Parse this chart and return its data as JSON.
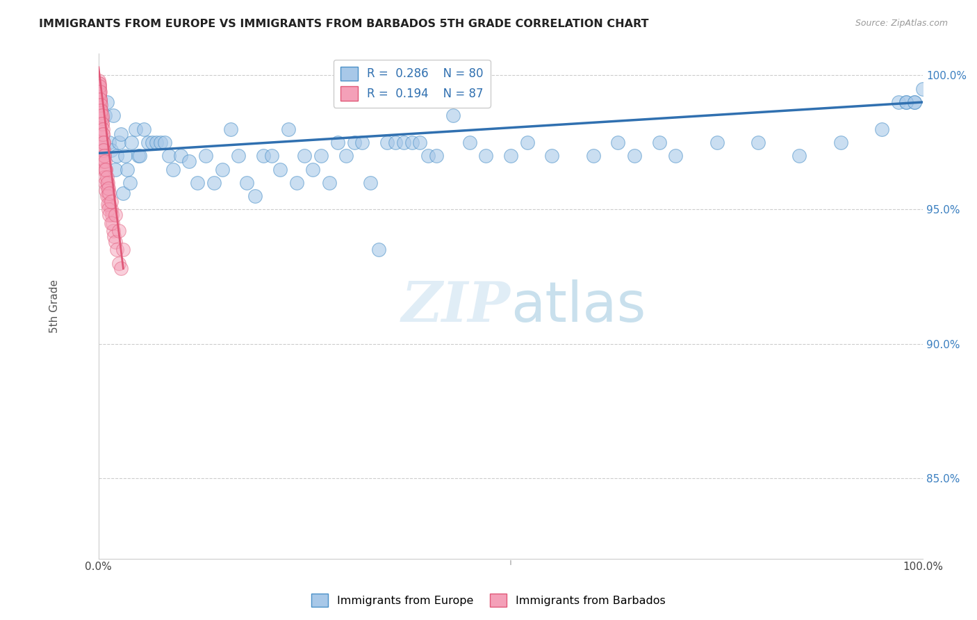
{
  "title": "IMMIGRANTS FROM EUROPE VS IMMIGRANTS FROM BARBADOS 5TH GRADE CORRELATION CHART",
  "source": "Source: ZipAtlas.com",
  "ylabel": "5th Grade",
  "xlim": [
    0.0,
    1.0
  ],
  "ylim": [
    0.82,
    1.008
  ],
  "yticks": [
    0.85,
    0.9,
    0.95,
    1.0
  ],
  "ytick_labels": [
    "85.0%",
    "90.0%",
    "95.0%",
    "100.0%"
  ],
  "xtick_labels": [
    "0.0%",
    "",
    "",
    "",
    "",
    "100.0%"
  ],
  "r_europe": 0.286,
  "n_europe": 80,
  "r_barbados": 0.194,
  "n_barbados": 87,
  "blue_color": "#a8c8e8",
  "blue_edge_color": "#4a90c8",
  "blue_line_color": "#3070b0",
  "pink_color": "#f4a0b8",
  "pink_edge_color": "#e05878",
  "pink_line_color": "#e05878",
  "legend_label_color": "#3070b0",
  "watermark_color": "#d0e8f5",
  "europe_x": [
    0.005,
    0.008,
    0.01,
    0.013,
    0.015,
    0.018,
    0.02,
    0.022,
    0.025,
    0.027,
    0.03,
    0.032,
    0.035,
    0.038,
    0.04,
    0.045,
    0.048,
    0.05,
    0.055,
    0.06,
    0.065,
    0.07,
    0.075,
    0.08,
    0.085,
    0.09,
    0.1,
    0.11,
    0.12,
    0.13,
    0.14,
    0.15,
    0.16,
    0.17,
    0.18,
    0.19,
    0.2,
    0.21,
    0.22,
    0.23,
    0.24,
    0.25,
    0.26,
    0.27,
    0.28,
    0.29,
    0.3,
    0.31,
    0.32,
    0.33,
    0.34,
    0.35,
    0.36,
    0.37,
    0.38,
    0.39,
    0.4,
    0.41,
    0.43,
    0.45,
    0.47,
    0.5,
    0.52,
    0.55,
    0.6,
    0.63,
    0.65,
    0.68,
    0.7,
    0.75,
    0.8,
    0.85,
    0.9,
    0.95,
    0.97,
    0.98,
    0.99,
    1.0,
    0.98,
    0.99
  ],
  "europe_y": [
    0.975,
    0.985,
    0.99,
    0.975,
    0.972,
    0.985,
    0.965,
    0.97,
    0.975,
    0.978,
    0.956,
    0.97,
    0.965,
    0.96,
    0.975,
    0.98,
    0.97,
    0.97,
    0.98,
    0.975,
    0.975,
    0.975,
    0.975,
    0.975,
    0.97,
    0.965,
    0.97,
    0.968,
    0.96,
    0.97,
    0.96,
    0.965,
    0.98,
    0.97,
    0.96,
    0.955,
    0.97,
    0.97,
    0.965,
    0.98,
    0.96,
    0.97,
    0.965,
    0.97,
    0.96,
    0.975,
    0.97,
    0.975,
    0.975,
    0.96,
    0.935,
    0.975,
    0.975,
    0.975,
    0.975,
    0.975,
    0.97,
    0.97,
    0.985,
    0.975,
    0.97,
    0.97,
    0.975,
    0.97,
    0.97,
    0.975,
    0.97,
    0.975,
    0.97,
    0.975,
    0.975,
    0.97,
    0.975,
    0.98,
    0.99,
    0.99,
    0.99,
    0.995,
    0.99,
    0.99
  ],
  "barbados_x": [
    0.0,
    0.0,
    0.0,
    0.001,
    0.001,
    0.002,
    0.002,
    0.003,
    0.003,
    0.004,
    0.005,
    0.005,
    0.006,
    0.006,
    0.007,
    0.008,
    0.009,
    0.01,
    0.011,
    0.012,
    0.013,
    0.015,
    0.016,
    0.017,
    0.018,
    0.019,
    0.02,
    0.022,
    0.025,
    0.027,
    0.003,
    0.004,
    0.005,
    0.006,
    0.007,
    0.008,
    0.009,
    0.01,
    0.011,
    0.012,
    0.013,
    0.015,
    0.003,
    0.004,
    0.005,
    0.006,
    0.002,
    0.003,
    0.001,
    0.002,
    0.001,
    0.002,
    0.003,
    0.004,
    0.001,
    0.002,
    0.003,
    0.001,
    0.002,
    0.001,
    0.0,
    0.0,
    0.0,
    0.001,
    0.001,
    0.001,
    0.002,
    0.002,
    0.003,
    0.003,
    0.004,
    0.004,
    0.005,
    0.005,
    0.006,
    0.006,
    0.007,
    0.008,
    0.009,
    0.01,
    0.011,
    0.012,
    0.013,
    0.015,
    0.02,
    0.025,
    0.03
  ],
  "barbados_y": [
    0.995,
    0.99,
    0.985,
    0.99,
    0.985,
    0.985,
    0.98,
    0.98,
    0.975,
    0.975,
    0.975,
    0.97,
    0.972,
    0.968,
    0.97,
    0.965,
    0.965,
    0.96,
    0.958,
    0.955,
    0.952,
    0.95,
    0.948,
    0.945,
    0.942,
    0.94,
    0.938,
    0.935,
    0.93,
    0.928,
    0.978,
    0.972,
    0.968,
    0.965,
    0.962,
    0.96,
    0.957,
    0.955,
    0.952,
    0.95,
    0.948,
    0.945,
    0.985,
    0.982,
    0.978,
    0.975,
    0.988,
    0.983,
    0.992,
    0.988,
    0.995,
    0.99,
    0.987,
    0.984,
    0.993,
    0.99,
    0.986,
    0.994,
    0.991,
    0.996,
    0.998,
    0.997,
    0.994,
    0.997,
    0.993,
    0.996,
    0.994,
    0.991,
    0.989,
    0.987,
    0.985,
    0.982,
    0.98,
    0.978,
    0.975,
    0.972,
    0.97,
    0.968,
    0.965,
    0.962,
    0.96,
    0.958,
    0.956,
    0.953,
    0.948,
    0.942,
    0.935
  ]
}
